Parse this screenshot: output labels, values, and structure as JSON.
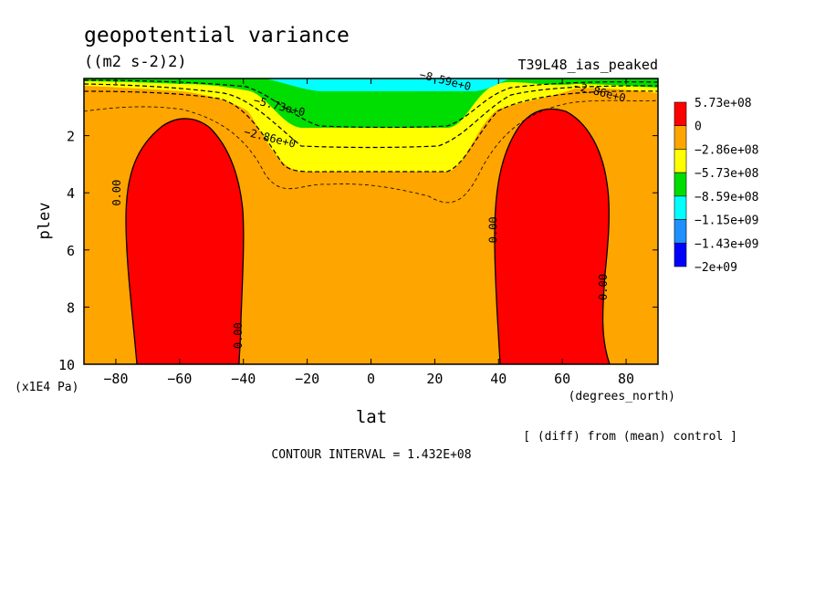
{
  "chart_data": {
    "type": "contour",
    "title": "geopotential variance",
    "units": "((m2 s-2)2)",
    "run_label": "T39L48_ias_peaked",
    "xlabel": "lat",
    "x_units": "(degrees_north)",
    "ylabel": "plev",
    "y_units": "(x1E4 Pa)",
    "xlim": [
      -90,
      90
    ],
    "ylim": [
      0,
      10
    ],
    "y_inverted": true,
    "x_ticks": [
      -80,
      -60,
      -40,
      -20,
      0,
      20,
      40,
      60,
      80
    ],
    "y_ticks": [
      2,
      4,
      6,
      8,
      10
    ],
    "contour_interval_text": "CONTOUR INTERVAL = 1.432E+08",
    "note": "[ (diff) from (mean) control ]",
    "colorbar": {
      "labels": [
        "5.73e+08",
        "0",
        "−2.86e+08",
        "−5.73e+08",
        "−8.59e+08",
        "−1.15e+09",
        "−1.43e+09",
        "−2e+09"
      ],
      "colors": [
        "#ff0000",
        "#ffa500",
        "#ffff00",
        "#00dd00",
        "#00ffff",
        "#1e90ff",
        "#0000ff"
      ]
    },
    "contour_labels": [
      {
        "text": "0.00",
        "x": -78.5,
        "y": 4.0
      },
      {
        "text": "0.00",
        "x": -40.5,
        "y": 9.0
      },
      {
        "text": "0.00",
        "x": 39.5,
        "y": 5.3
      },
      {
        "text": "0.00",
        "x": 74,
        "y": 7.3
      },
      {
        "text": "-8.59e+0",
        "x": 23,
        "y": 0.2
      },
      {
        "text": "-5.73e+0",
        "x": -29,
        "y": 1.1
      },
      {
        "text": "-2.86e+0",
        "x": -32,
        "y": 2.2
      },
      {
        "text": "-2.86e+0",
        "x": 71.5,
        "y": 0.6
      }
    ]
  }
}
